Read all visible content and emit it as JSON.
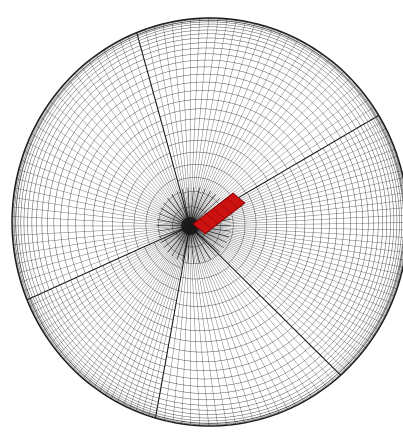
{
  "figure": {
    "kind": "wireframe-mesh",
    "shape": "hemispherical shell (open dish) with radial sector patches",
    "sector_count": 5,
    "colors": {
      "background": "#ffffff",
      "mesh_lines": "#1a1a1a",
      "highlight_patch": "#cc1111",
      "highlight_outline": "#7a0000"
    }
  }
}
